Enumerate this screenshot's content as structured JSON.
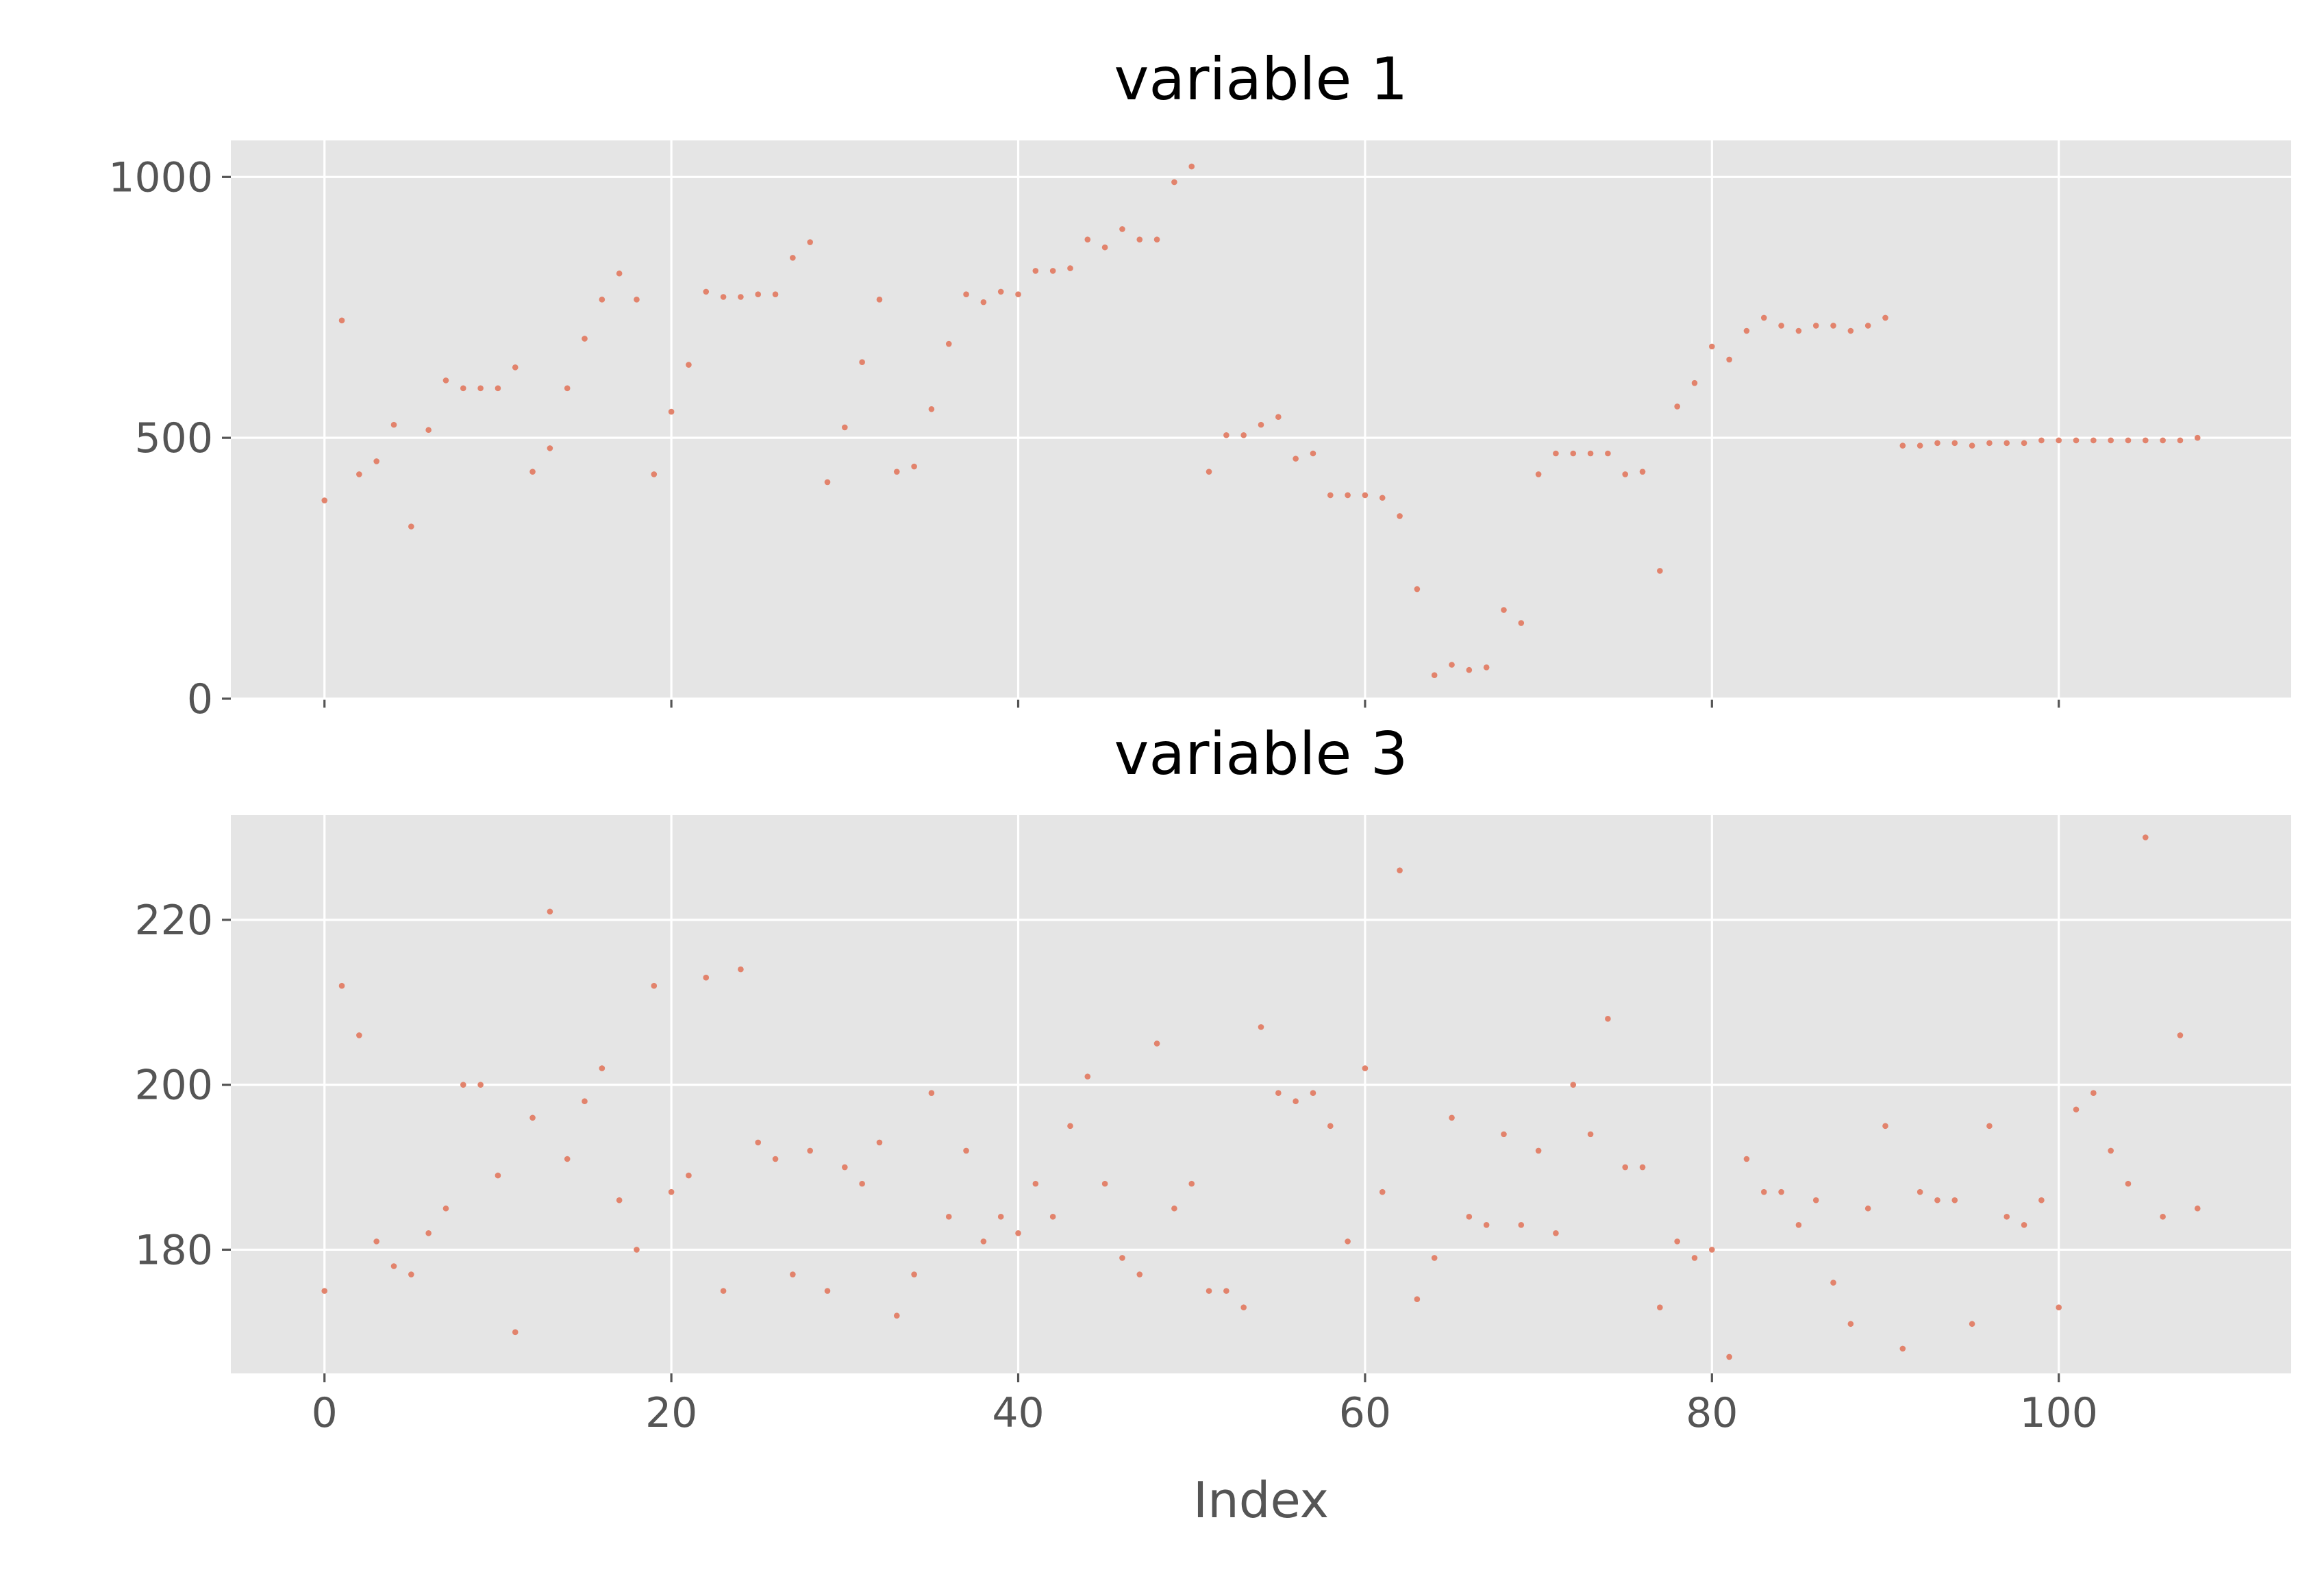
{
  "chart_data": [
    {
      "type": "scatter",
      "title": "variable 1",
      "xlabel": "",
      "ylabel": "",
      "xlim": [
        -5.4,
        113.4
      ],
      "ylim": [
        0,
        1070
      ],
      "xticks": [
        0,
        20,
        40,
        60,
        80,
        100
      ],
      "yticks": [
        0,
        500,
        1000
      ],
      "ytick_labels": [
        "0",
        "500",
        "1000"
      ],
      "show_xtick_labels": false,
      "grid": true,
      "point_color": "#e2836c",
      "background": "#e5e5e5",
      "x": [
        0,
        1,
        2,
        3,
        4,
        5,
        6,
        7,
        8,
        9,
        10,
        11,
        12,
        13,
        14,
        15,
        16,
        17,
        18,
        19,
        20,
        21,
        22,
        23,
        24,
        25,
        26,
        27,
        28,
        29,
        30,
        31,
        32,
        33,
        34,
        35,
        36,
        37,
        38,
        39,
        40,
        41,
        42,
        43,
        44,
        45,
        46,
        47,
        48,
        49,
        50,
        51,
        52,
        53,
        54,
        55,
        56,
        57,
        58,
        59,
        60,
        61,
        62,
        63,
        64,
        65,
        66,
        67,
        68,
        69,
        70,
        71,
        72,
        73,
        74,
        75,
        76,
        77,
        78,
        79,
        80,
        81,
        82,
        83,
        84,
        85,
        86,
        87,
        88,
        89,
        90,
        91,
        92,
        93,
        94,
        95,
        96,
        97,
        98,
        99,
        100,
        101,
        102,
        103,
        104,
        105,
        106,
        107,
        108
      ],
      "y": [
        380,
        725,
        430,
        455,
        525,
        330,
        515,
        610,
        595,
        595,
        595,
        635,
        435,
        480,
        595,
        690,
        765,
        815,
        765,
        430,
        550,
        640,
        780,
        770,
        770,
        775,
        775,
        845,
        875,
        415,
        520,
        645,
        765,
        435,
        445,
        555,
        680,
        775,
        760,
        780,
        775,
        820,
        820,
        825,
        880,
        865,
        900,
        880,
        880,
        990,
        1020,
        435,
        505,
        505,
        525,
        540,
        460,
        470,
        390,
        390,
        390,
        385,
        350,
        210,
        45,
        65,
        55,
        60,
        170,
        145,
        430,
        470,
        470,
        470,
        470,
        430,
        435,
        245,
        560,
        605,
        675,
        650,
        705,
        730,
        715,
        705,
        715,
        715,
        705,
        715,
        730,
        485,
        485,
        490,
        490,
        485,
        490,
        490,
        490,
        495,
        495,
        495,
        495,
        495,
        495,
        495,
        495,
        495,
        500
      ]
    },
    {
      "type": "scatter",
      "title": "variable 3",
      "xlabel": "Index",
      "ylabel": "",
      "xlim": [
        -5.4,
        113.4
      ],
      "ylim": [
        165,
        232.7
      ],
      "xticks": [
        0,
        20,
        40,
        60,
        80,
        100
      ],
      "xtick_labels": [
        "0",
        "20",
        "40",
        "60",
        "80",
        "100"
      ],
      "yticks": [
        180,
        200,
        220
      ],
      "ytick_labels": [
        "180",
        "200",
        "220"
      ],
      "grid": true,
      "point_color": "#e2836c",
      "background": "#e5e5e5",
      "x": [
        0,
        1,
        2,
        3,
        4,
        5,
        6,
        7,
        8,
        9,
        10,
        11,
        12,
        13,
        14,
        15,
        16,
        17,
        18,
        19,
        20,
        21,
        22,
        23,
        24,
        25,
        26,
        27,
        28,
        29,
        30,
        31,
        32,
        33,
        34,
        35,
        36,
        37,
        38,
        39,
        40,
        41,
        42,
        43,
        44,
        45,
        46,
        47,
        48,
        49,
        50,
        51,
        52,
        53,
        54,
        55,
        56,
        57,
        58,
        59,
        60,
        61,
        62,
        63,
        64,
        65,
        66,
        67,
        68,
        69,
        70,
        71,
        72,
        73,
        74,
        75,
        76,
        77,
        78,
        79,
        80,
        81,
        82,
        83,
        84,
        85,
        86,
        87,
        88,
        89,
        90,
        91,
        92,
        93,
        94,
        95,
        96,
        97,
        98,
        99,
        100,
        101,
        102,
        103,
        104,
        105,
        106,
        107,
        108
      ],
      "y": [
        175,
        212,
        206,
        181,
        178,
        177,
        182,
        185,
        200,
        200,
        189,
        170,
        196,
        221,
        191,
        198,
        202,
        186,
        180,
        212,
        187,
        189,
        213,
        175,
        214,
        193,
        191,
        177,
        192,
        175,
        190,
        188,
        193,
        172,
        177,
        199,
        184,
        192,
        181,
        184,
        182,
        188,
        184,
        195,
        201,
        188,
        179,
        177,
        205,
        185,
        188,
        175,
        175,
        173,
        207,
        199,
        198,
        199,
        195,
        181,
        202,
        187,
        226,
        174,
        179,
        196,
        184,
        183,
        194,
        183,
        192,
        182,
        200,
        194,
        208,
        190,
        190,
        173,
        181,
        179,
        180,
        167,
        191,
        187,
        187,
        183,
        186,
        176,
        171,
        185,
        195,
        168,
        187,
        186,
        186,
        171,
        195,
        184,
        183,
        186,
        173,
        197,
        199,
        192,
        188,
        230,
        184,
        206,
        185
      ]
    }
  ]
}
